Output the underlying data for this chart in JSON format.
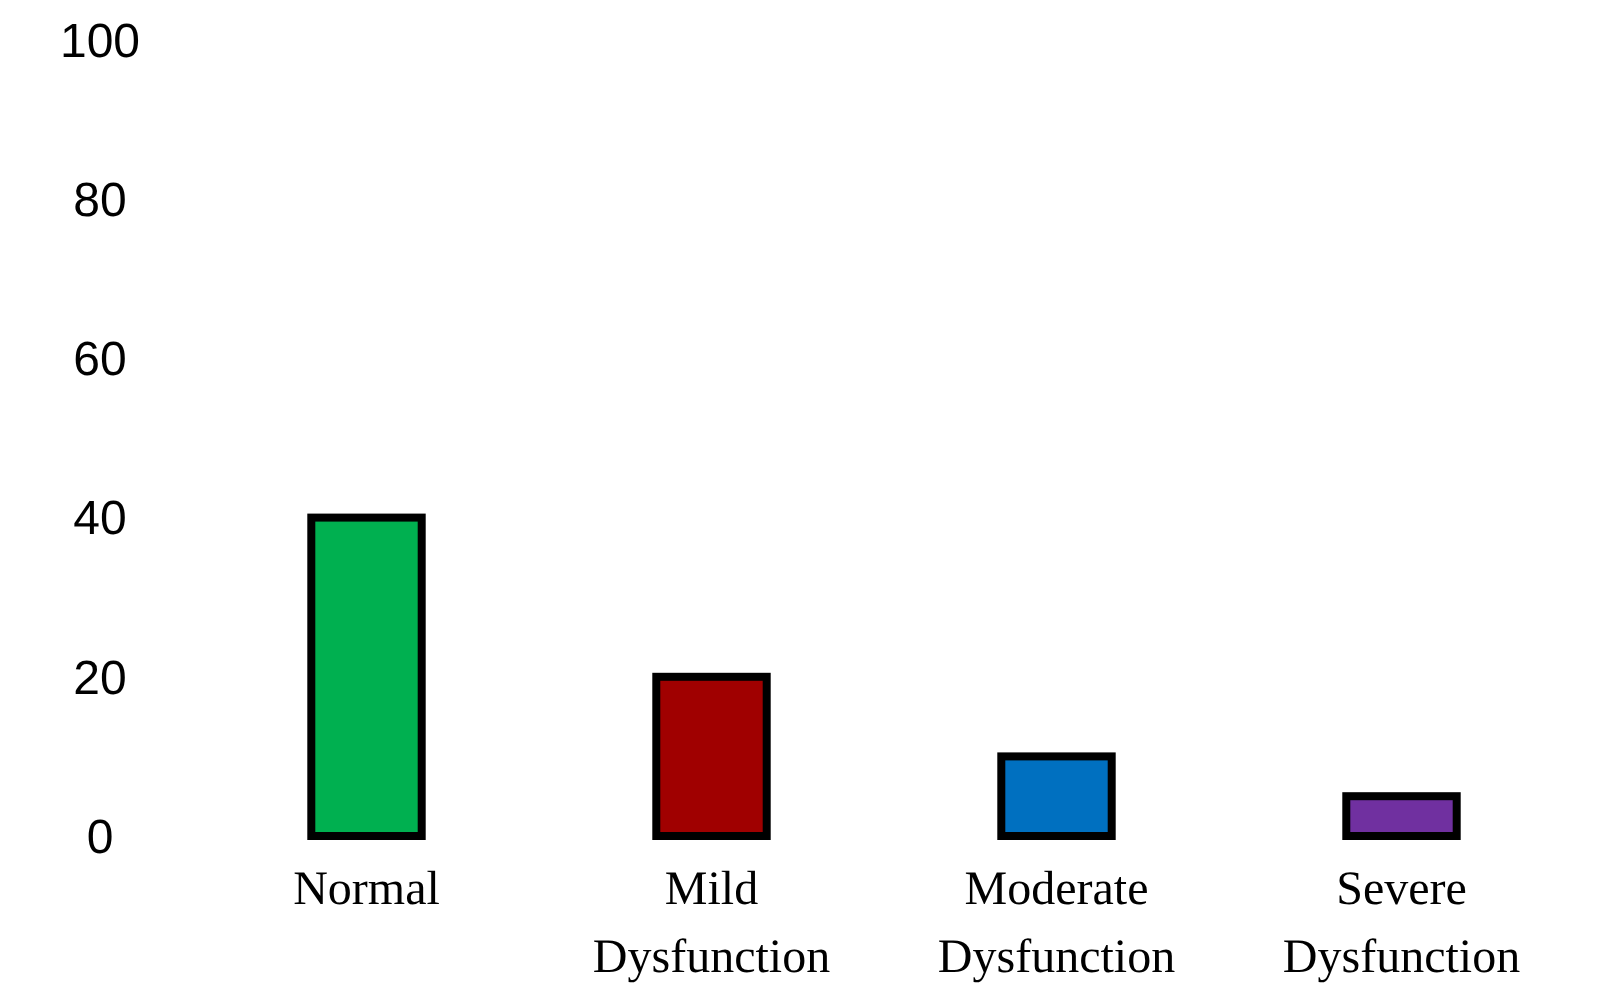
{
  "chart_data": {
    "type": "bar",
    "categories": [
      "Normal",
      "Mild Dysfunction",
      "Moderate Dysfunction",
      "Severe Dysfunction"
    ],
    "values": [
      40,
      20,
      10,
      5
    ],
    "colors": [
      "#00b050",
      "#a00000",
      "#0070c0",
      "#7030a0"
    ],
    "ylim": [
      0,
      100
    ],
    "yticks": [
      0,
      20,
      40,
      60,
      80,
      100
    ],
    "grid": false
  }
}
